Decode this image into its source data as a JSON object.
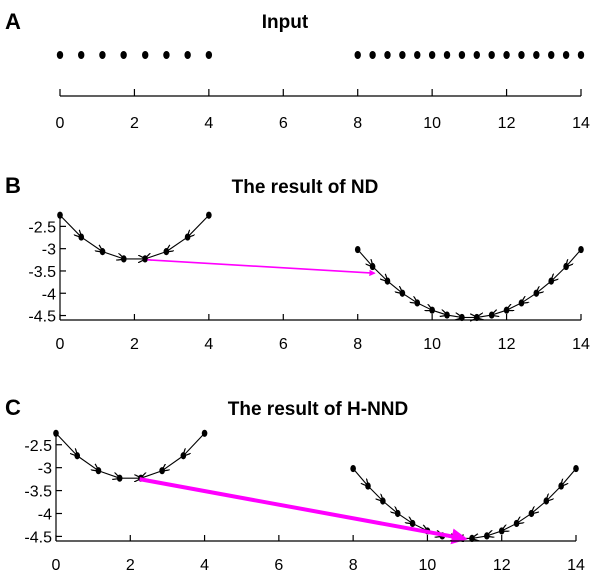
{
  "figure": {
    "colors": {
      "points": "#000000",
      "arrows": "#000000",
      "highlight": "#ff00ff"
    }
  },
  "chart_data": [
    {
      "panel": "A",
      "title": "Input",
      "type": "scatter",
      "x_ticks": [
        "0",
        "2",
        "4",
        "6",
        "8",
        "10",
        "12",
        "14"
      ],
      "xlim": [
        0,
        14
      ],
      "y_axis": false,
      "points": [
        {
          "x": 0.0
        },
        {
          "x": 0.57
        },
        {
          "x": 1.14
        },
        {
          "x": 1.71
        },
        {
          "x": 2.29
        },
        {
          "x": 2.86
        },
        {
          "x": 3.43
        },
        {
          "x": 4.0
        },
        {
          "x": 8.0
        },
        {
          "x": 8.4
        },
        {
          "x": 8.8
        },
        {
          "x": 9.2
        },
        {
          "x": 9.6
        },
        {
          "x": 10.0
        },
        {
          "x": 10.4
        },
        {
          "x": 10.8
        },
        {
          "x": 11.2
        },
        {
          "x": 11.6
        },
        {
          "x": 12.0
        },
        {
          "x": 12.4
        },
        {
          "x": 12.8
        },
        {
          "x": 13.2
        },
        {
          "x": 13.6
        },
        {
          "x": 14.0
        }
      ]
    },
    {
      "panel": "B",
      "title": "The result of ND",
      "type": "scatter",
      "x_ticks": [
        "0",
        "2",
        "4",
        "6",
        "8",
        "10",
        "12",
        "14"
      ],
      "y_ticks": [
        "-2.5",
        "-3",
        "-3.5",
        "-4",
        "-4.5"
      ],
      "xlim": [
        0,
        14
      ],
      "ylim": [
        -4.6,
        -2.2
      ],
      "curves": [
        {
          "vertex_x": 2.0,
          "vertex_y": -3.25,
          "a": 0.25,
          "x_range": [
            0,
            4
          ],
          "arrow_targets_from": [
            2.2,
            2.5
          ],
          "destination_x": 2.35
        },
        {
          "vertex_x": 11.0,
          "vertex_y": -4.55,
          "a": 0.17,
          "x_range": [
            8,
            14
          ],
          "arrow_targets_from": [
            10.8,
            11.3
          ],
          "destination_x": 11.05
        }
      ],
      "highlight_arrow": {
        "from": [
          2.35,
          -3.25
        ],
        "to": [
          8.45,
          -3.55
        ]
      }
    },
    {
      "panel": "C",
      "title": "The result of H-NND",
      "type": "scatter",
      "x_ticks": [
        "0",
        "2",
        "4",
        "6",
        "8",
        "10",
        "12",
        "14"
      ],
      "y_ticks": [
        "-2.5",
        "-3",
        "-3.5",
        "-4",
        "-4.5"
      ],
      "xlim": [
        0,
        14
      ],
      "ylim": [
        -4.6,
        -2.2
      ],
      "curves": [
        {
          "vertex_x": 2.0,
          "vertex_y": -3.25,
          "a": 0.25,
          "x_range": [
            0,
            4
          ],
          "arrow_targets_from": [
            2.2,
            2.5
          ],
          "destination_x": 2.25
        },
        {
          "vertex_x": 11.0,
          "vertex_y": -4.55,
          "a": 0.17,
          "x_range": [
            8,
            14
          ],
          "arrow_targets_from": [
            10.8,
            11.3
          ],
          "destination_x": 11.0
        }
      ],
      "highlight_arrow": {
        "from": [
          2.25,
          -3.25
        ],
        "to": [
          11.0,
          -4.55
        ]
      }
    }
  ]
}
